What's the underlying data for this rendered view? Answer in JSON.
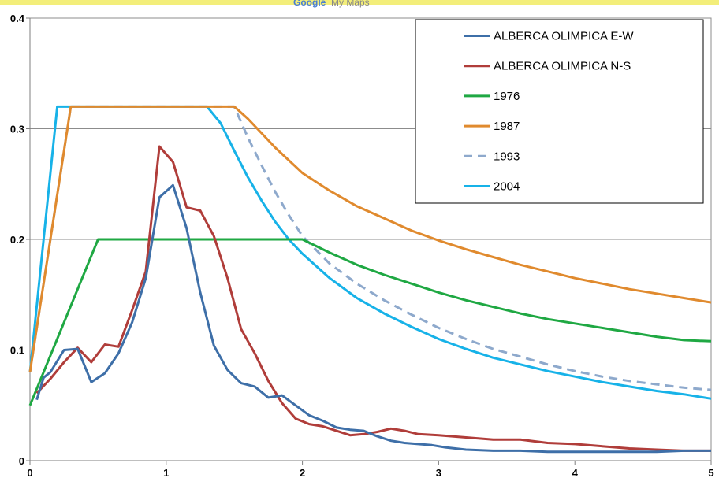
{
  "watermark": {
    "brand": "Google",
    "product": "My Maps"
  },
  "chart_data": {
    "type": "line",
    "title": "",
    "xlabel": "",
    "ylabel": "",
    "xlim": [
      0,
      5
    ],
    "ylim": [
      0,
      0.4
    ],
    "x_ticks": [
      "0",
      "1",
      "2",
      "3",
      "4",
      "5"
    ],
    "y_ticks": [
      "0",
      "0.1",
      "0.2",
      "0.3",
      "0.4"
    ],
    "grid": "horizontal",
    "legend_position": "top-right",
    "series": [
      {
        "name": "ALBERCA OLIMPICA E-W",
        "color": "#3E6FA8",
        "dash": false,
        "points": [
          [
            0.05,
            0.055
          ],
          [
            0.1,
            0.075
          ],
          [
            0.15,
            0.08
          ],
          [
            0.25,
            0.1
          ],
          [
            0.35,
            0.101
          ],
          [
            0.45,
            0.071
          ],
          [
            0.55,
            0.079
          ],
          [
            0.65,
            0.097
          ],
          [
            0.75,
            0.125
          ],
          [
            0.85,
            0.165
          ],
          [
            0.95,
            0.238
          ],
          [
            1.05,
            0.249
          ],
          [
            1.15,
            0.21
          ],
          [
            1.25,
            0.152
          ],
          [
            1.35,
            0.104
          ],
          [
            1.45,
            0.082
          ],
          [
            1.55,
            0.07
          ],
          [
            1.65,
            0.067
          ],
          [
            1.75,
            0.057
          ],
          [
            1.85,
            0.059
          ],
          [
            1.95,
            0.05
          ],
          [
            2.05,
            0.041
          ],
          [
            2.15,
            0.036
          ],
          [
            2.25,
            0.03
          ],
          [
            2.35,
            0.028
          ],
          [
            2.45,
            0.027
          ],
          [
            2.55,
            0.022
          ],
          [
            2.65,
            0.018
          ],
          [
            2.75,
            0.016
          ],
          [
            2.85,
            0.015
          ],
          [
            2.95,
            0.014
          ],
          [
            3.05,
            0.012
          ],
          [
            3.2,
            0.01
          ],
          [
            3.4,
            0.009
          ],
          [
            3.6,
            0.009
          ],
          [
            3.8,
            0.008
          ],
          [
            4.0,
            0.008
          ],
          [
            4.3,
            0.008
          ],
          [
            4.6,
            0.008
          ],
          [
            4.8,
            0.009
          ],
          [
            5.0,
            0.009
          ]
        ]
      },
      {
        "name": "ALBERCA OLIMPICA N-S",
        "color": "#B03D3A",
        "dash": false,
        "points": [
          [
            0.05,
            0.061
          ],
          [
            0.15,
            0.074
          ],
          [
            0.25,
            0.089
          ],
          [
            0.35,
            0.102
          ],
          [
            0.45,
            0.089
          ],
          [
            0.55,
            0.105
          ],
          [
            0.65,
            0.103
          ],
          [
            0.75,
            0.136
          ],
          [
            0.85,
            0.171
          ],
          [
            0.95,
            0.284
          ],
          [
            1.05,
            0.27
          ],
          [
            1.15,
            0.229
          ],
          [
            1.25,
            0.226
          ],
          [
            1.35,
            0.203
          ],
          [
            1.45,
            0.165
          ],
          [
            1.55,
            0.119
          ],
          [
            1.65,
            0.097
          ],
          [
            1.75,
            0.072
          ],
          [
            1.85,
            0.052
          ],
          [
            1.95,
            0.038
          ],
          [
            2.05,
            0.033
          ],
          [
            2.15,
            0.031
          ],
          [
            2.25,
            0.027
          ],
          [
            2.35,
            0.023
          ],
          [
            2.45,
            0.024
          ],
          [
            2.55,
            0.026
          ],
          [
            2.65,
            0.029
          ],
          [
            2.75,
            0.027
          ],
          [
            2.85,
            0.024
          ],
          [
            3.0,
            0.023
          ],
          [
            3.2,
            0.021
          ],
          [
            3.4,
            0.019
          ],
          [
            3.6,
            0.019
          ],
          [
            3.8,
            0.016
          ],
          [
            4.0,
            0.015
          ],
          [
            4.2,
            0.013
          ],
          [
            4.4,
            0.011
          ],
          [
            4.6,
            0.01
          ],
          [
            4.8,
            0.009
          ],
          [
            5.0,
            0.009
          ]
        ]
      },
      {
        "name": "1976",
        "color": "#1FA843",
        "dash": false,
        "points": [
          [
            0,
            0.05
          ],
          [
            0.5,
            0.2
          ],
          [
            2.0,
            0.2
          ],
          [
            2.2,
            0.188
          ],
          [
            2.4,
            0.177
          ],
          [
            2.6,
            0.168
          ],
          [
            2.8,
            0.16
          ],
          [
            3.0,
            0.152
          ],
          [
            3.2,
            0.145
          ],
          [
            3.4,
            0.139
          ],
          [
            3.6,
            0.133
          ],
          [
            3.8,
            0.128
          ],
          [
            4.0,
            0.124
          ],
          [
            4.2,
            0.12
          ],
          [
            4.4,
            0.116
          ],
          [
            4.6,
            0.112
          ],
          [
            4.8,
            0.109
          ],
          [
            5.0,
            0.108
          ]
        ]
      },
      {
        "name": "1987",
        "color": "#E08A2E",
        "dash": false,
        "points": [
          [
            0,
            0.08
          ],
          [
            0.3,
            0.32
          ],
          [
            1.5,
            0.32
          ],
          [
            1.6,
            0.309
          ],
          [
            1.7,
            0.296
          ],
          [
            1.8,
            0.283
          ],
          [
            2.0,
            0.26
          ],
          [
            2.2,
            0.244
          ],
          [
            2.4,
            0.23
          ],
          [
            2.6,
            0.219
          ],
          [
            2.8,
            0.208
          ],
          [
            3.0,
            0.199
          ],
          [
            3.2,
            0.191
          ],
          [
            3.4,
            0.184
          ],
          [
            3.6,
            0.177
          ],
          [
            3.8,
            0.171
          ],
          [
            4.0,
            0.165
          ],
          [
            4.2,
            0.16
          ],
          [
            4.4,
            0.155
          ],
          [
            4.6,
            0.151
          ],
          [
            4.8,
            0.147
          ],
          [
            5.0,
            0.143
          ]
        ]
      },
      {
        "name": "1993",
        "color": "#8EA9CC",
        "dash": true,
        "points": [
          [
            0,
            0.08
          ],
          [
            0.3,
            0.32
          ],
          [
            1.5,
            0.32
          ],
          [
            1.6,
            0.292
          ],
          [
            1.7,
            0.267
          ],
          [
            1.8,
            0.243
          ],
          [
            1.9,
            0.222
          ],
          [
            2.0,
            0.203
          ],
          [
            2.2,
            0.178
          ],
          [
            2.4,
            0.16
          ],
          [
            2.6,
            0.145
          ],
          [
            2.8,
            0.132
          ],
          [
            3.0,
            0.12
          ],
          [
            3.2,
            0.11
          ],
          [
            3.4,
            0.101
          ],
          [
            3.6,
            0.094
          ],
          [
            3.8,
            0.087
          ],
          [
            4.0,
            0.081
          ],
          [
            4.2,
            0.076
          ],
          [
            4.4,
            0.072
          ],
          [
            4.6,
            0.069
          ],
          [
            4.8,
            0.066
          ],
          [
            5.0,
            0.064
          ]
        ]
      },
      {
        "name": "2004",
        "color": "#17B2E8",
        "dash": false,
        "points": [
          [
            0,
            0.08
          ],
          [
            0.2,
            0.32
          ],
          [
            1.3,
            0.32
          ],
          [
            1.4,
            0.305
          ],
          [
            1.5,
            0.28
          ],
          [
            1.6,
            0.256
          ],
          [
            1.7,
            0.235
          ],
          [
            1.8,
            0.216
          ],
          [
            1.9,
            0.2
          ],
          [
            2.0,
            0.187
          ],
          [
            2.2,
            0.165
          ],
          [
            2.4,
            0.147
          ],
          [
            2.6,
            0.133
          ],
          [
            2.8,
            0.121
          ],
          [
            3.0,
            0.11
          ],
          [
            3.2,
            0.101
          ],
          [
            3.4,
            0.093
          ],
          [
            3.6,
            0.087
          ],
          [
            3.8,
            0.081
          ],
          [
            4.0,
            0.076
          ],
          [
            4.2,
            0.071
          ],
          [
            4.4,
            0.067
          ],
          [
            4.6,
            0.063
          ],
          [
            4.8,
            0.06
          ],
          [
            5.0,
            0.056
          ]
        ]
      }
    ]
  }
}
